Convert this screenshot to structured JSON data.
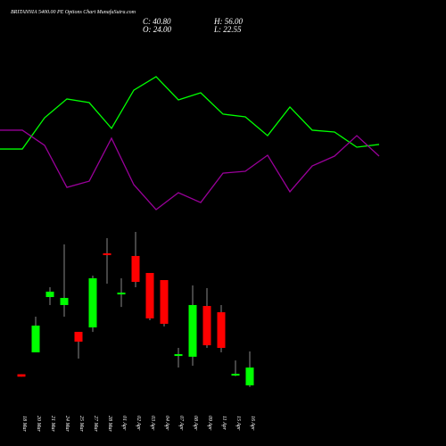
{
  "header": {
    "title": "BRITANNIA 5400.00 PE Options Chart MunafaSutra.com",
    "close": "C: 40.80",
    "open": "O: 24.00",
    "high": "H: 56.00",
    "low": "L: 22.55"
  },
  "chart_data": [
    {
      "type": "line",
      "ylim": [
        0,
        100
      ],
      "series": [
        {
          "color": "#00ff00",
          "values": [
            48.8,
            48.8,
            69.4,
            81.8,
            79.4,
            62.4,
            87.6,
            96.5,
            81.2,
            85.9,
            71.8,
            70,
            57.6,
            76.5,
            61.2,
            60,
            50,
            51.8
          ]
        },
        {
          "color": "#990099",
          "values": [
            61.2,
            61.2,
            51.2,
            23.5,
            27.6,
            55.9,
            25.3,
            8.8,
            20,
            13.5,
            32.9,
            34.1,
            44.7,
            20.6,
            37.6,
            44.1,
            57.6,
            44.1
          ]
        }
      ]
    },
    {
      "type": "candlestick",
      "ylim": [
        0,
        200
      ],
      "up_color": "#00ff00",
      "down_color": "#ff0000",
      "categories": [
        "18 Mar",
        "20 Mar",
        "21 Mar",
        "24 Mar",
        "25 Mar",
        "27 Mar",
        "28 Mar",
        "01 Apr",
        "02 Apr",
        "03 Apr",
        "04 Apr",
        "07 Apr",
        "08 Apr",
        "09 Apr",
        "11 Apr",
        "15 Apr",
        "16 Apr"
      ],
      "open": [
        34.5,
        55.1,
        107.2,
        99.7,
        74.4,
        78.6,
        148.4,
        109.7,
        145.9,
        129.9,
        123.2,
        51.8,
        51.0,
        98.8,
        92.9,
        33.3,
        24.0
      ],
      "high": [
        34.5,
        88.7,
        116.5,
        156.8,
        74.4,
        127.4,
        162.7,
        124.9,
        168.6,
        129.9,
        123.2,
        59.3,
        118.2,
        115.6,
        99.7,
        47.5,
        56.0
      ],
      "low": [
        32.2,
        55.1,
        99.7,
        88.7,
        49.2,
        74.4,
        119.8,
        97.9,
        116.5,
        85.4,
        79.5,
        40.8,
        42.5,
        59.3,
        55.1,
        32.7,
        22.55
      ],
      "close": [
        32.2,
        80.3,
        112.3,
        106.4,
        65.2,
        124.9,
        146.7,
        111.4,
        121.5,
        87.1,
        82.0,
        53.4,
        99.7,
        61.8,
        59.3,
        34.9,
        40.8
      ]
    }
  ]
}
